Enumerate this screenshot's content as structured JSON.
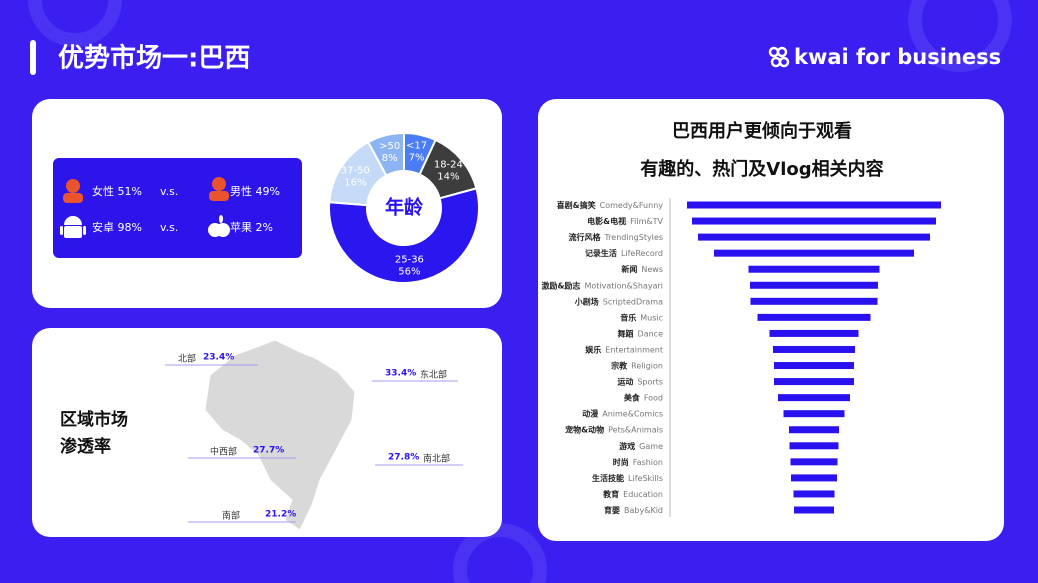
{
  "header": {
    "title": "优势市场一:巴西",
    "brand": "kwai for business"
  },
  "demographics": {
    "rows": [
      [
        "女性 51%",
        "v.s.",
        "男性 49%"
      ],
      [
        "安卓 98%",
        "v.s.",
        "苹果 2%"
      ]
    ]
  },
  "regions": {
    "title": [
      "区域市场",
      "渗透率"
    ],
    "items": [
      {
        "name": "北部",
        "value": "23.4%"
      },
      {
        "name": "东北部",
        "value": "33.4%"
      },
      {
        "name": "中西部",
        "value": "27.7%"
      },
      {
        "name": "南北部",
        "value": "27.8%"
      },
      {
        "name": "南部",
        "value": "21.2%"
      }
    ]
  },
  "chart_data": [
    {
      "type": "pie",
      "center_label": "年龄",
      "categories": [
        "<17",
        "18-24",
        "25-36",
        "37-50",
        ">50"
      ],
      "values": [
        7,
        14,
        56,
        16,
        8
      ],
      "value_labels": [
        "7%",
        "14%",
        "56%",
        "16%",
        "8%"
      ],
      "colors": [
        "#4a7cf5",
        "#3d3d3d",
        "#2a16ee",
        "#c5daf6",
        "#8cb4f2"
      ]
    },
    {
      "type": "bar",
      "title": "巴西用户更倾向于观看",
      "subtitle": "有趣的、热门及Vlog相关内容",
      "categories": [
        "喜剧&搞笑",
        "电影&电视",
        "流行风格",
        "记录生活",
        "新闻",
        "激励&励志",
        "小剧场",
        "音乐",
        "舞蹈",
        "娱乐",
        "宗教",
        "运动",
        "美食",
        "动漫",
        "宠物&动物",
        "游戏",
        "时尚",
        "生活技能",
        "教育",
        "育婴"
      ],
      "category_labels_en": [
        "Comedy&Funny",
        "Film&TV",
        "TrendingStyles",
        "LifeRecord",
        "News",
        "Motivation&Shayari",
        "ScriptedDrama",
        "Music",
        "Dance",
        "Entertainment",
        "Religion",
        "Sports",
        "Food",
        "Anime&Comics",
        "Pets&Animals",
        "Game",
        "Fashion",
        "LifeSkills",
        "Education",
        "Baby&Kid"
      ],
      "values": [
        254,
        244,
        232,
        200,
        131,
        128,
        127,
        113,
        89,
        82,
        80,
        80,
        72,
        61,
        50,
        49,
        47,
        46,
        41,
        40
      ],
      "color": "#2a12f0"
    }
  ]
}
